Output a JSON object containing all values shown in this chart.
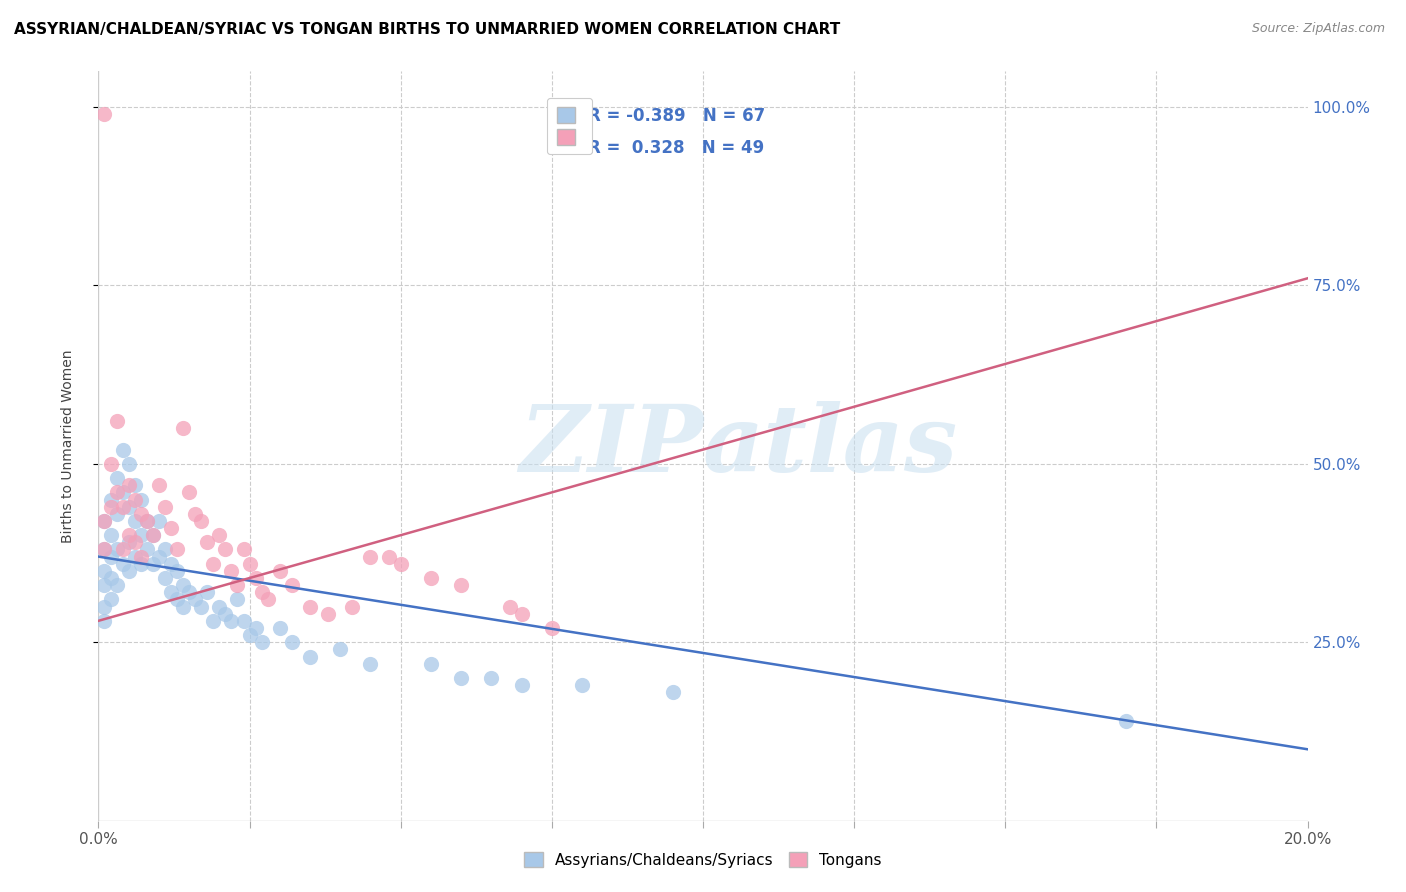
{
  "title": "ASSYRIAN/CHALDEAN/SYRIAC VS TONGAN BIRTHS TO UNMARRIED WOMEN CORRELATION CHART",
  "source": "Source: ZipAtlas.com",
  "ylabel": "Births to Unmarried Women",
  "legend_label_blue": "Assyrians/Chaldeans/Syriacs",
  "legend_label_pink": "Tongans",
  "R_blue": -0.389,
  "N_blue": 67,
  "R_pink": 0.328,
  "N_pink": 49,
  "blue_color": "#a8c8e8",
  "pink_color": "#f4a0b8",
  "blue_line_color": "#4472c4",
  "pink_line_color": "#d06080",
  "watermark_zip": "ZIP",
  "watermark_atlas": "atlas",
  "blue_scatter_x": [
    0.001,
    0.001,
    0.001,
    0.001,
    0.001,
    0.001,
    0.002,
    0.002,
    0.002,
    0.002,
    0.002,
    0.003,
    0.003,
    0.003,
    0.003,
    0.004,
    0.004,
    0.004,
    0.005,
    0.005,
    0.005,
    0.005,
    0.006,
    0.006,
    0.006,
    0.007,
    0.007,
    0.007,
    0.008,
    0.008,
    0.009,
    0.009,
    0.01,
    0.01,
    0.011,
    0.011,
    0.012,
    0.012,
    0.013,
    0.013,
    0.014,
    0.014,
    0.015,
    0.016,
    0.017,
    0.018,
    0.019,
    0.02,
    0.021,
    0.022,
    0.023,
    0.024,
    0.025,
    0.026,
    0.027,
    0.03,
    0.032,
    0.035,
    0.04,
    0.045,
    0.055,
    0.06,
    0.065,
    0.07,
    0.08,
    0.095,
    0.17
  ],
  "blue_scatter_y": [
    0.42,
    0.38,
    0.35,
    0.33,
    0.3,
    0.28,
    0.45,
    0.4,
    0.37,
    0.34,
    0.31,
    0.48,
    0.43,
    0.38,
    0.33,
    0.52,
    0.46,
    0.36,
    0.5,
    0.44,
    0.39,
    0.35,
    0.47,
    0.42,
    0.37,
    0.45,
    0.4,
    0.36,
    0.42,
    0.38,
    0.4,
    0.36,
    0.42,
    0.37,
    0.38,
    0.34,
    0.36,
    0.32,
    0.35,
    0.31,
    0.33,
    0.3,
    0.32,
    0.31,
    0.3,
    0.32,
    0.28,
    0.3,
    0.29,
    0.28,
    0.31,
    0.28,
    0.26,
    0.27,
    0.25,
    0.27,
    0.25,
    0.23,
    0.24,
    0.22,
    0.22,
    0.2,
    0.2,
    0.19,
    0.19,
    0.18,
    0.14
  ],
  "pink_scatter_x": [
    0.001,
    0.001,
    0.002,
    0.002,
    0.003,
    0.003,
    0.004,
    0.004,
    0.005,
    0.005,
    0.006,
    0.006,
    0.007,
    0.007,
    0.008,
    0.009,
    0.01,
    0.011,
    0.012,
    0.013,
    0.014,
    0.015,
    0.016,
    0.017,
    0.018,
    0.019,
    0.02,
    0.021,
    0.022,
    0.023,
    0.024,
    0.025,
    0.026,
    0.027,
    0.028,
    0.03,
    0.032,
    0.035,
    0.038,
    0.042,
    0.045,
    0.048,
    0.05,
    0.055,
    0.06,
    0.068,
    0.07,
    0.075,
    0.001
  ],
  "pink_scatter_y": [
    0.42,
    0.38,
    0.5,
    0.44,
    0.56,
    0.46,
    0.44,
    0.38,
    0.47,
    0.4,
    0.45,
    0.39,
    0.43,
    0.37,
    0.42,
    0.4,
    0.47,
    0.44,
    0.41,
    0.38,
    0.55,
    0.46,
    0.43,
    0.42,
    0.39,
    0.36,
    0.4,
    0.38,
    0.35,
    0.33,
    0.38,
    0.36,
    0.34,
    0.32,
    0.31,
    0.35,
    0.33,
    0.3,
    0.29,
    0.3,
    0.37,
    0.37,
    0.36,
    0.34,
    0.33,
    0.3,
    0.29,
    0.27,
    0.99
  ],
  "xlim": [
    0.0,
    0.2
  ],
  "ylim": [
    0.0,
    1.05
  ],
  "ytick_positions": [
    0.25,
    0.5,
    0.75,
    1.0
  ],
  "ytick_labels": [
    "25.0%",
    "50.0%",
    "75.0%",
    "100.0%"
  ],
  "xtick_positions": [
    0.0,
    0.025,
    0.05,
    0.075,
    0.1,
    0.125,
    0.15,
    0.175,
    0.2
  ],
  "xtick_labels": [
    "0.0%",
    "",
    "",
    "",
    "",
    "",
    "",
    "",
    "20.0%"
  ],
  "blue_trend_x": [
    0.0,
    0.2
  ],
  "blue_trend_y": [
    0.37,
    0.1
  ],
  "pink_trend_x": [
    0.0,
    0.2
  ],
  "pink_trend_y": [
    0.28,
    0.76
  ],
  "grid_color": "#cccccc",
  "title_fontsize": 11,
  "tick_fontsize": 11,
  "right_tick_color": "#4472c4"
}
